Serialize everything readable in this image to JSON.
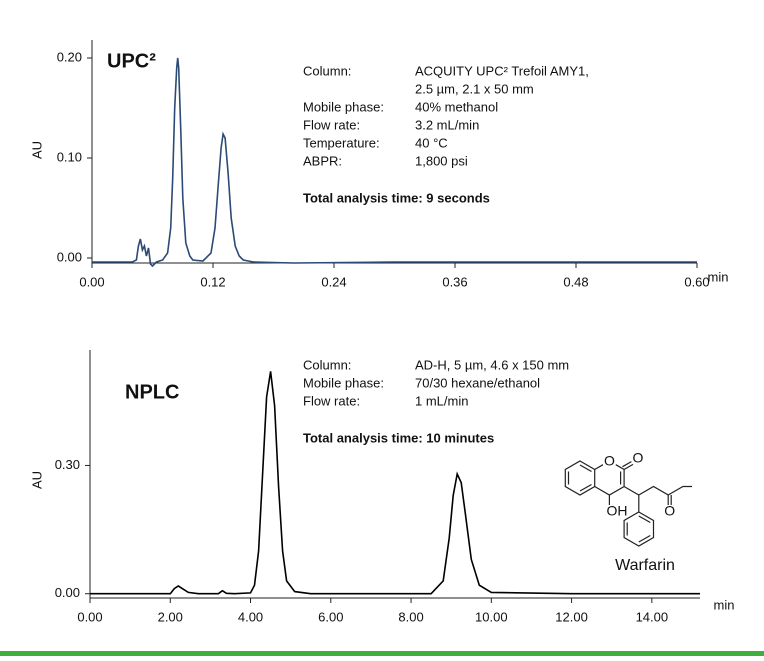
{
  "chart_data": [
    {
      "type": "line",
      "label": "UPC²",
      "x_unit": "min",
      "ylabel": "AU",
      "color": "#2b4a75",
      "label_color": "#2c4a7c",
      "details": [
        {
          "label": "Column:",
          "value": [
            "ACQUITY UPC² Trefoil AMY1,",
            "2.5 µm, 2.1 x 50 mm"
          ]
        },
        {
          "label": "Mobile phase:",
          "value": [
            "40% methanol"
          ]
        },
        {
          "label": "Flow rate:",
          "value": [
            "3.2 mL/min"
          ]
        },
        {
          "label": "Temperature:",
          "value": [
            "40 °C"
          ]
        },
        {
          "label": "ABPR:",
          "value": [
            "1,800 psi"
          ]
        }
      ],
      "note": "Total analysis time: 9 seconds",
      "xlim": [
        0,
        0.6
      ],
      "ylim": [
        -0.005,
        0.218
      ],
      "xticks": [
        {
          "value": 0,
          "label": "0.00"
        },
        {
          "value": 0.12,
          "label": "0.12"
        },
        {
          "value": 0.24,
          "label": "0.24"
        },
        {
          "value": 0.36,
          "label": "0.36"
        },
        {
          "value": 0.48,
          "label": "0.48"
        },
        {
          "value": 0.6,
          "label": "0.60"
        }
      ],
      "yticks": [
        {
          "value": 0,
          "label": "0.00"
        },
        {
          "value": 0.1,
          "label": "0.10"
        },
        {
          "value": 0.2,
          "label": "0.20"
        }
      ],
      "x": [
        0,
        0.04,
        0.044,
        0.046,
        0.048,
        0.05,
        0.052,
        0.054,
        0.056,
        0.058,
        0.06,
        0.064,
        0.07,
        0.075,
        0.078,
        0.08,
        0.082,
        0.084,
        0.085,
        0.086,
        0.088,
        0.09,
        0.093,
        0.097,
        0.1,
        0.11,
        0.118,
        0.122,
        0.125,
        0.128,
        0.13,
        0.132,
        0.135,
        0.138,
        0.142,
        0.146,
        0.15,
        0.16,
        0.2,
        0.3,
        0.4,
        0.5,
        0.6
      ],
      "values": [
        -0.004,
        -0.004,
        -0.002,
        0.012,
        0.019,
        0.008,
        0.012,
        0.002,
        0.01,
        -0.006,
        -0.008,
        -0.004,
        -0.002,
        0.005,
        0.03,
        0.08,
        0.15,
        0.19,
        0.2,
        0.19,
        0.13,
        0.06,
        0.015,
        0.002,
        -0.002,
        -0.003,
        0.005,
        0.03,
        0.07,
        0.11,
        0.124,
        0.12,
        0.085,
        0.04,
        0.012,
        0.002,
        -0.002,
        -0.004,
        -0.005,
        -0.004,
        -0.004,
        -0.004,
        -0.004
      ]
    },
    {
      "type": "line",
      "label": "NPLC",
      "x_unit": "min",
      "ylabel": "AU",
      "color": "#000000",
      "label_color": "#000000",
      "details": [
        {
          "label": "Column:",
          "value": [
            "AD-H, 5 µm, 4.6 x 150 mm"
          ]
        },
        {
          "label": "Mobile phase:",
          "value": [
            "70/30 hexane/ethanol"
          ]
        },
        {
          "label": "Flow rate:",
          "value": [
            "1 mL/min"
          ]
        }
      ],
      "note": "Total analysis time: 10 minutes",
      "structure_name": "Warfarin",
      "structure_labels": [
        "O",
        "O",
        "OH",
        "O"
      ],
      "xlim": [
        0,
        15.2
      ],
      "ylim": [
        -0.01,
        0.57
      ],
      "xticks": [
        {
          "value": 0,
          "label": "0.00"
        },
        {
          "value": 2,
          "label": "2.00"
        },
        {
          "value": 4,
          "label": "4.00"
        },
        {
          "value": 6,
          "label": "6.00"
        },
        {
          "value": 8,
          "label": "8.00"
        },
        {
          "value": 10,
          "label": "10.00"
        },
        {
          "value": 12,
          "label": "12.00"
        },
        {
          "value": 14,
          "label": "14.00"
        }
      ],
      "yticks": [
        {
          "value": 0,
          "label": "0.00"
        },
        {
          "value": 0.3,
          "label": "0.30"
        }
      ],
      "x": [
        0,
        2.0,
        2.1,
        2.2,
        2.3,
        2.45,
        2.7,
        3.2,
        3.3,
        3.4,
        3.6,
        4.0,
        4.1,
        4.2,
        4.3,
        4.4,
        4.5,
        4.6,
        4.7,
        4.8,
        4.9,
        5.1,
        5.5,
        8.5,
        8.8,
        8.95,
        9.05,
        9.15,
        9.25,
        9.35,
        9.5,
        9.7,
        10.0,
        12,
        15.2
      ],
      "values": [
        0,
        0,
        0.012,
        0.018,
        0.012,
        0.003,
        0,
        0,
        0.007,
        0.001,
        0,
        0.002,
        0.02,
        0.1,
        0.28,
        0.46,
        0.52,
        0.44,
        0.25,
        0.1,
        0.03,
        0.005,
        0,
        0,
        0.03,
        0.13,
        0.23,
        0.28,
        0.26,
        0.19,
        0.08,
        0.02,
        0.003,
        0,
        0
      ]
    }
  ]
}
